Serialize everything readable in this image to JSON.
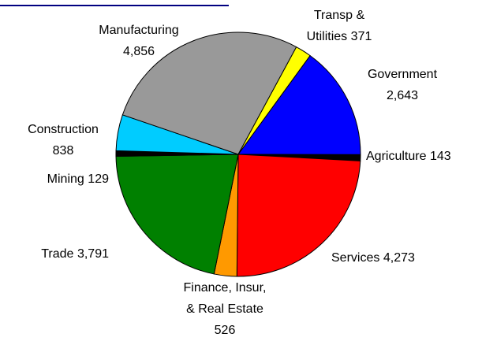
{
  "chart_data": {
    "type": "pie",
    "categories": [
      "Government",
      "Agriculture",
      "Services",
      "Finance, Insur, & Real Estate",
      "Trade",
      "Mining",
      "Construction",
      "Manufacturing",
      "Transp & Utilities"
    ],
    "values": [
      2643,
      143,
      4273,
      526,
      3791,
      129,
      838,
      4856,
      371
    ],
    "value_labels": [
      "2,643",
      "143",
      "4,273",
      "526",
      "3,791",
      "129",
      "838",
      "4,856",
      "371"
    ],
    "colors": [
      "#0000ff",
      "#000000",
      "#ff0000",
      "#ff9900",
      "#008000",
      "#000000",
      "#00ccff",
      "#999999",
      "#ffff00"
    ]
  }
}
